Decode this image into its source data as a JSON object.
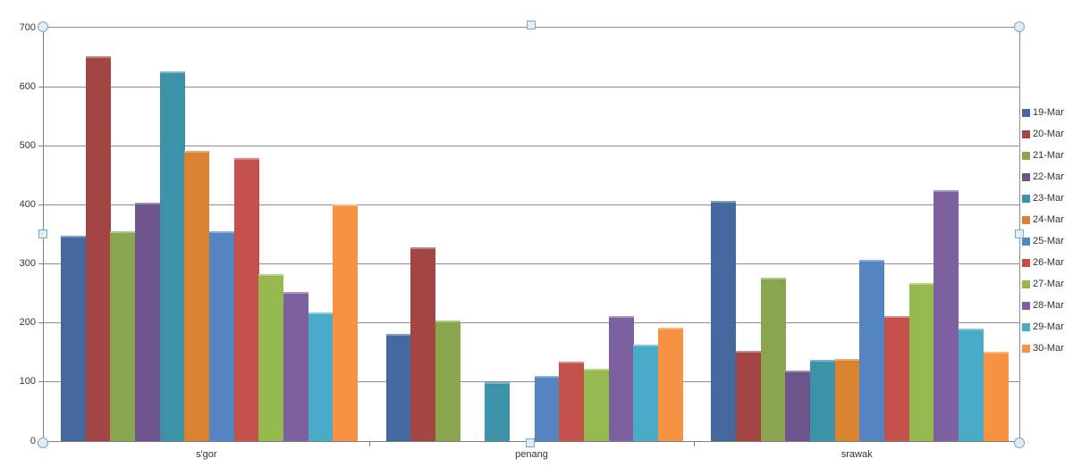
{
  "chart_data": {
    "type": "bar",
    "title": "",
    "categories": [
      "s'gor",
      "penang",
      "srawak"
    ],
    "series": [
      {
        "name": "19-Mar",
        "color": "#43699F",
        "values": [
          348,
          181,
          406
        ]
      },
      {
        "name": "20-Mar",
        "color": "#A34643",
        "values": [
          652,
          328,
          152
        ]
      },
      {
        "name": "21-Mar",
        "color": "#89A54E",
        "values": [
          355,
          204,
          276
        ]
      },
      {
        "name": "22-Mar",
        "color": "#6E548D",
        "values": [
          403,
          0,
          120
        ]
      },
      {
        "name": "23-Mar",
        "color": "#3C92A8",
        "values": [
          626,
          100,
          137
        ]
      },
      {
        "name": "24-Mar",
        "color": "#D9822F",
        "values": [
          491,
          0,
          139
        ]
      },
      {
        "name": "25-Mar",
        "color": "#5485C2",
        "values": [
          355,
          111,
          307
        ]
      },
      {
        "name": "26-Mar",
        "color": "#C4504C",
        "values": [
          479,
          135,
          211
        ]
      },
      {
        "name": "27-Mar",
        "color": "#95B94F",
        "values": [
          282,
          123,
          267
        ]
      },
      {
        "name": "28-Mar",
        "color": "#7D60A0",
        "values": [
          253,
          211,
          425
        ]
      },
      {
        "name": "29-Mar",
        "color": "#49ABC7",
        "values": [
          218,
          163,
          190
        ]
      },
      {
        "name": "30-Mar",
        "color": "#F79243",
        "values": [
          400,
          192,
          151
        ]
      }
    ],
    "ylim": [
      0,
      700
    ],
    "ytick_labels": [
      "0",
      "100",
      "200",
      "300",
      "400",
      "500",
      "600",
      "700"
    ],
    "grid": true,
    "legend_position": "right"
  },
  "colors": {
    "background": "#FFFFFF",
    "gridline": "#8D8D8D",
    "axis": "#7F7F7F",
    "tick_text": "#333333",
    "legend_text": "#333333",
    "handle_fill": "#DCEFF7",
    "handle_border": "#84A7BC"
  },
  "selection": {
    "state": "plot-area-selected",
    "handles": [
      "top-left",
      "top-mid",
      "top-right",
      "mid-left",
      "mid-right",
      "bottom-left",
      "bottom-mid",
      "bottom-right"
    ]
  }
}
